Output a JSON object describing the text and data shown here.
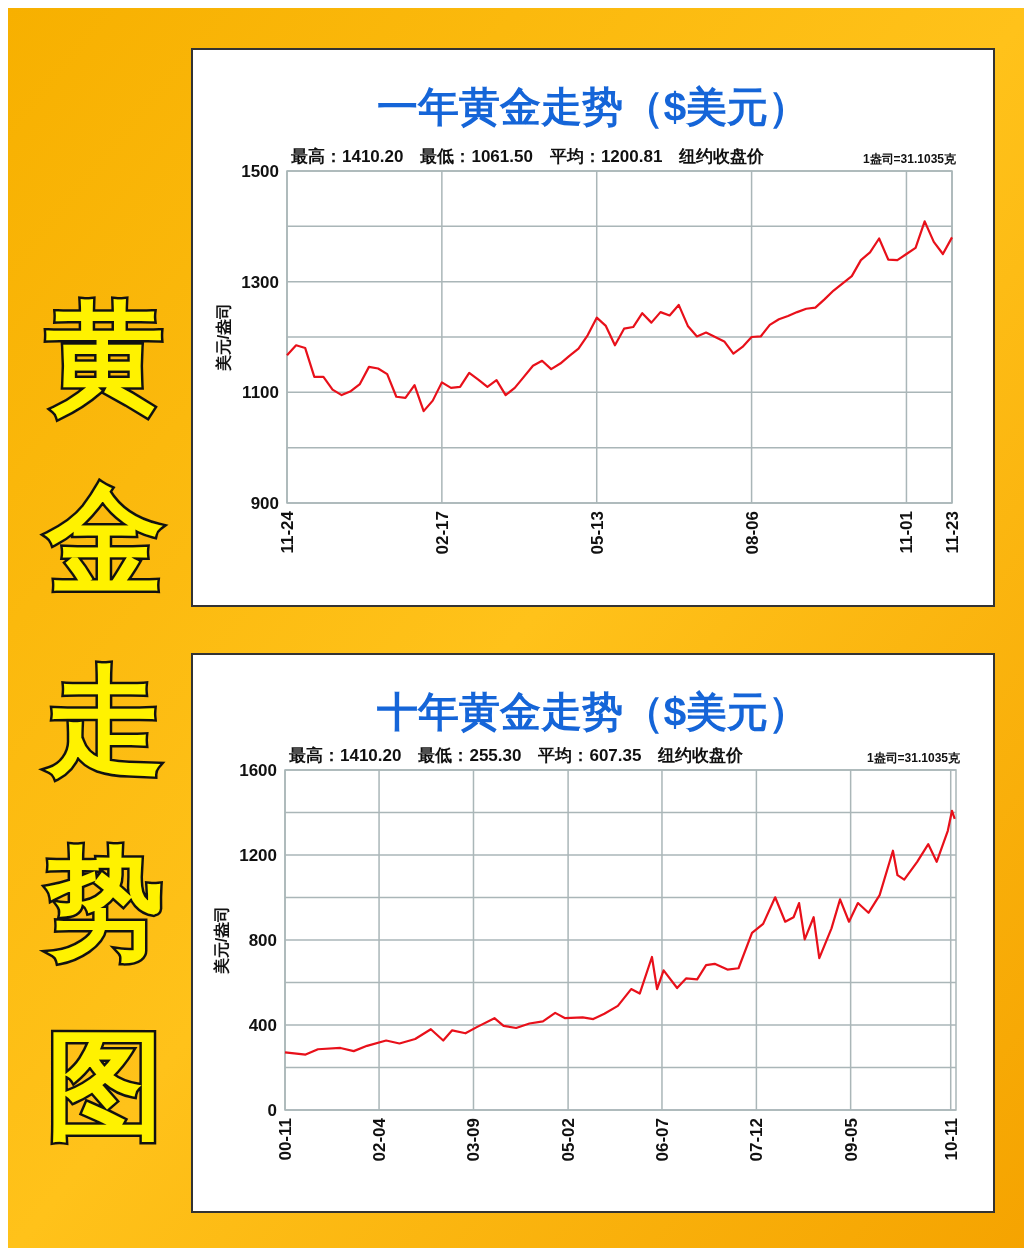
{
  "chart_data": [
    {
      "type": "line",
      "title": "一年黄金走势（$美元）",
      "subtitle": "最高：1410.20　最低：1061.50　平均：1200.81　纽约收盘价",
      "ylabel": "美元/盎司",
      "annotations": [
        "1盎司=31.1035克",
        "黄金走势图"
      ],
      "categories": [
        "11-24",
        null,
        null,
        null,
        null,
        null,
        null,
        null,
        null,
        null,
        null,
        null,
        null,
        null,
        null,
        null,
        null,
        "02-17",
        null,
        null,
        null,
        null,
        null,
        null,
        null,
        null,
        null,
        null,
        null,
        null,
        null,
        null,
        null,
        null,
        "05-13",
        null,
        null,
        null,
        null,
        null,
        null,
        null,
        null,
        null,
        null,
        null,
        null,
        null,
        null,
        null,
        null,
        "08-06",
        null,
        null,
        null,
        null,
        null,
        null,
        null,
        null,
        null,
        null,
        null,
        null,
        null,
        null,
        null,
        null,
        "11-01",
        null,
        null,
        null,
        null,
        "11-23"
      ],
      "series": [
        {
          "color": "#e8101a",
          "values": [
            1167,
            1185,
            1180,
            1128,
            1128,
            1105,
            1095,
            1102,
            1115,
            1146,
            1143,
            1133,
            1092,
            1090,
            1113,
            1066,
            1085,
            1118,
            1108,
            1110,
            1135,
            1123,
            1110,
            1122,
            1095,
            1108,
            1128,
            1148,
            1157,
            1142,
            1152,
            1166,
            1179,
            1203,
            1235,
            1220,
            1185,
            1215,
            1218,
            1243,
            1226,
            1245,
            1239,
            1258,
            1220,
            1201,
            1208,
            1200,
            1192,
            1170,
            1182,
            1200,
            1201,
            1222,
            1232,
            1238,
            1245,
            1251,
            1253,
            1268,
            1284,
            1297,
            1310,
            1339,
            1353,
            1378,
            1340,
            1339,
            1350,
            1361,
            1409,
            1372,
            1350,
            1380
          ]
        }
      ],
      "ylim": [
        900,
        1500
      ],
      "yticks": [
        900,
        {
          "value": 1000,
          "label": null
        },
        1100,
        {
          "value": 1200,
          "label": null
        },
        1300,
        {
          "value": 1400,
          "label": null
        },
        1500
      ],
      "grid": true,
      "line_style": "solid",
      "marker": "none"
    },
    {
      "type": "line",
      "title": "十年黄金走势（$美元）",
      "subtitle": "最高：1410.20　最低：255.30　平均：607.35　纽约收盘价",
      "ylabel": "美元/盎司",
      "annotations": [
        "1盎司=31.1035克"
      ],
      "x": [
        "2000-11-01",
        "2001-02-22",
        "2001-05-01",
        "2001-09-01",
        "2001-11-13",
        "2002-01-25",
        "2002-05-10",
        "2002-07-22",
        "2002-10-16",
        "2003-01-10",
        "2003-03-19",
        "2003-05-07",
        "2003-07-19",
        "2003-09-19",
        "2003-12-25",
        "2004-02-13",
        "2004-04-22",
        "2004-07-04",
        "2004-09-16",
        "2004-11-22",
        "2005-01-16",
        "2005-04-22",
        "2005-06-19",
        "2005-08-19",
        "2005-11-01",
        "2006-01-13",
        "2006-03-01",
        "2006-05-07",
        "2006-06-04",
        "2006-07-10",
        "2006-09-22",
        "2006-11-10",
        "2007-01-10",
        "2007-02-28",
        "2007-04-16",
        "2007-06-25",
        "2007-08-25",
        "2007-11-07",
        "2008-01-07",
        "2008-03-13",
        "2008-05-07",
        "2008-06-22",
        "2008-07-22",
        "2008-08-22",
        "2008-10-10",
        "2008-11-10",
        "2009-01-16",
        "2009-03-04",
        "2009-04-22",
        "2009-06-10",
        "2009-08-07",
        "2009-10-07",
        "2009-12-19",
        "2010-01-13",
        "2010-02-19",
        "2010-05-01",
        "2010-07-01",
        "2010-08-16",
        "2010-10-16",
        "2010-11-08",
        "2010-11-23"
      ],
      "series": [
        {
          "color": "#e8101a",
          "values": [
            271,
            261,
            286,
            292,
            277,
            302,
            327,
            313,
            334,
            380,
            327,
            375,
            361,
            390,
            432,
            396,
            386,
            407,
            417,
            457,
            432,
            436,
            428,
            453,
            490,
            569,
            548,
            720,
            569,
            657,
            574,
            619,
            615,
            682,
            688,
            661,
            667,
            834,
            876,
            1001,
            886,
            907,
            974,
            803,
            907,
            715,
            855,
            991,
            886,
            974,
            928,
            1011,
            1220,
            1105,
            1084,
            1168,
            1251,
            1168,
            1314,
            1408,
            1370
          ]
        }
      ],
      "xlim": [
        "2000-11-01",
        "2010-11-30"
      ],
      "xticks": [
        {
          "value": "2000-11-01",
          "label": "00-11"
        },
        {
          "value": "2002-04-01",
          "label": "02-04"
        },
        {
          "value": "2003-09-01",
          "label": "03-09"
        },
        {
          "value": "2005-02-01",
          "label": "05-02"
        },
        {
          "value": "2006-07-01",
          "label": "06-07"
        },
        {
          "value": "2007-12-01",
          "label": "07-12"
        },
        {
          "value": "2009-05-01",
          "label": "09-05"
        },
        {
          "value": "2010-11-01",
          "label": "10-11"
        }
      ],
      "ylim": [
        0,
        1600
      ],
      "yticks": [
        0,
        {
          "value": 200,
          "label": null
        },
        400,
        {
          "value": 600,
          "label": null
        },
        800,
        {
          "value": 1000,
          "label": null
        },
        1200,
        {
          "value": 1400,
          "label": null
        },
        1600
      ],
      "grid": true,
      "line_style": "solid",
      "marker": "none"
    }
  ]
}
